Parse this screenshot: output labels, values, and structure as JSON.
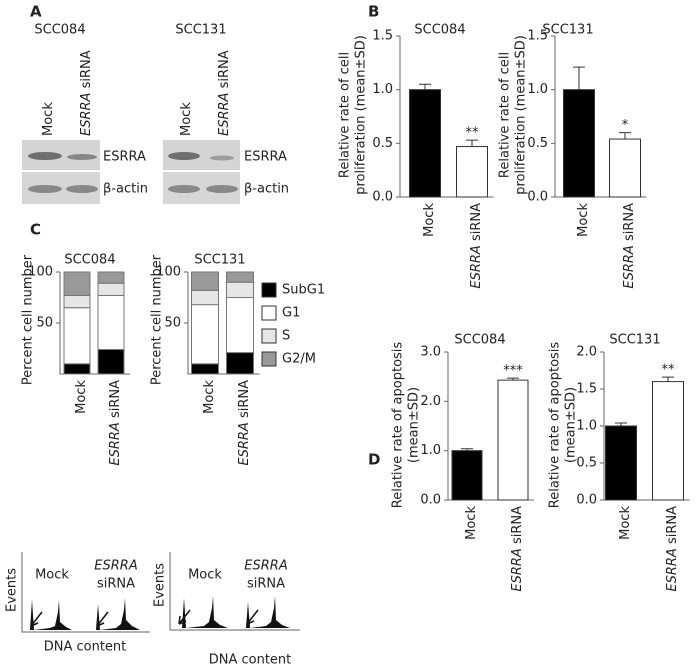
{
  "panel_labels": [
    "A",
    "B",
    "C",
    "D"
  ],
  "blots": [
    {
      "title": "SCC084",
      "lanes": [
        "Mock",
        "ESRRA siRNA"
      ],
      "bands": [
        "ESRRA",
        "β-actin"
      ]
    },
    {
      "title": "SCC131",
      "lanes": [
        "Mock",
        "ESRRA siRNA"
      ],
      "bands": [
        "ESRRA",
        "β-actin"
      ]
    }
  ],
  "flow": [
    {
      "labels": [
        [
          "Mock"
        ],
        [
          "ESRRA",
          "siRNA"
        ]
      ],
      "ylabel": "Events",
      "xlabel": "DNA content"
    },
    {
      "labels": [
        [
          "Mock"
        ],
        [
          "ESRRA",
          "siRNA"
        ]
      ],
      "ylabel": "Events",
      "xlabel": "DNA content"
    }
  ],
  "chart_data": [
    {
      "type": "bar",
      "title": "SCC084",
      "ylabel": [
        "Relative rate of cell",
        "proliferation (mean±SD)"
      ],
      "categories": [
        "Mock",
        "ESRRA siRNA"
      ],
      "values": [
        1.0,
        0.47
      ],
      "errors": [
        0.05,
        0.06
      ],
      "significance": [
        null,
        "**"
      ],
      "colors": [
        "#000000",
        "#ffffff"
      ],
      "ylim": [
        0,
        1.5
      ],
      "yticks": [
        {
          "value": 0,
          "label": "0.0"
        },
        {
          "value": 0.5,
          "label": "0.5"
        },
        {
          "value": 1,
          "label": "1.0"
        },
        {
          "value": 1.5,
          "label": "1.5"
        }
      ]
    },
    {
      "type": "bar",
      "title": "SCC131",
      "ylabel": [
        "Relative rate of cell",
        "proliferation (mean±SD)"
      ],
      "categories": [
        "Mock",
        "ESRRA siRNA"
      ],
      "values": [
        1.0,
        0.54
      ],
      "errors": [
        0.21,
        0.06
      ],
      "significance": [
        null,
        "*"
      ],
      "colors": [
        "#000000",
        "#ffffff"
      ],
      "ylim": [
        0,
        1.5
      ],
      "yticks": [
        {
          "value": 0,
          "label": "0.0"
        },
        {
          "value": 0.5,
          "label": "0.5"
        },
        {
          "value": 1,
          "label": "1.0"
        },
        {
          "value": 1.5,
          "label": "1.5"
        }
      ]
    },
    {
      "type": "stacked_bar",
      "title": "SCC084",
      "ylabel": [
        "Percent cell number"
      ],
      "categories": [
        "Mock",
        "ESRRA siRNA"
      ],
      "series": [
        {
          "name": "SubG1",
          "color": "#000000",
          "values": [
            10,
            24
          ]
        },
        {
          "name": "G1",
          "color": "#ffffff",
          "values": [
            55,
            53
          ]
        },
        {
          "name": "S",
          "color": "#e6e6e6",
          "values": [
            12,
            12
          ]
        },
        {
          "name": "G2/M",
          "color": "#999999",
          "values": [
            23,
            11
          ]
        }
      ],
      "ylim": [
        0,
        100
      ],
      "yticks": [
        50,
        100
      ],
      "legend": "right"
    },
    {
      "type": "stacked_bar",
      "title": "SCC131",
      "ylabel": [
        "Percent cell number"
      ],
      "categories": [
        "Mock",
        "ESRRA siRNA"
      ],
      "series": [
        {
          "name": "SubG1",
          "color": "#000000",
          "values": [
            10,
            21
          ]
        },
        {
          "name": "G1",
          "color": "#ffffff",
          "values": [
            58,
            54
          ]
        },
        {
          "name": "S",
          "color": "#e6e6e6",
          "values": [
            14,
            15
          ]
        },
        {
          "name": "G2/M",
          "color": "#999999",
          "values": [
            18,
            10
          ]
        }
      ],
      "ylim": [
        0,
        100
      ],
      "yticks": [
        50,
        100
      ]
    },
    {
      "type": "bar",
      "title": "SCC084",
      "ylabel": [
        "Relative rate of apoptosis",
        "(mean±SD)"
      ],
      "categories": [
        "Mock",
        "ESRRA siRNA"
      ],
      "values": [
        1.0,
        2.43
      ],
      "errors": [
        0.04,
        0.04
      ],
      "significance": [
        null,
        "***"
      ],
      "colors": [
        "#000000",
        "#ffffff"
      ],
      "ylim": [
        0,
        3
      ],
      "yticks": [
        {
          "value": 0,
          "label": "0.0"
        },
        {
          "value": 1,
          "label": "1.0"
        },
        {
          "value": 2,
          "label": "2.0"
        },
        {
          "value": 3,
          "label": "3.0"
        }
      ]
    },
    {
      "type": "bar",
      "title": "SCC131",
      "ylabel": [
        "Relative rate of apoptosis",
        "(mean±SD)"
      ],
      "categories": [
        "Mock",
        "ESRRA siRNA"
      ],
      "values": [
        1.0,
        1.6
      ],
      "errors": [
        0.04,
        0.06
      ],
      "significance": [
        null,
        "**"
      ],
      "colors": [
        "#000000",
        "#ffffff"
      ],
      "ylim": [
        0,
        2
      ],
      "yticks": [
        {
          "value": 0,
          "label": "0.0"
        },
        {
          "value": 0.5,
          "label": "0.5"
        },
        {
          "value": 1,
          "label": "1.0"
        },
        {
          "value": 1.5,
          "label": "1.5"
        },
        {
          "value": 2,
          "label": "2.0"
        }
      ]
    }
  ]
}
